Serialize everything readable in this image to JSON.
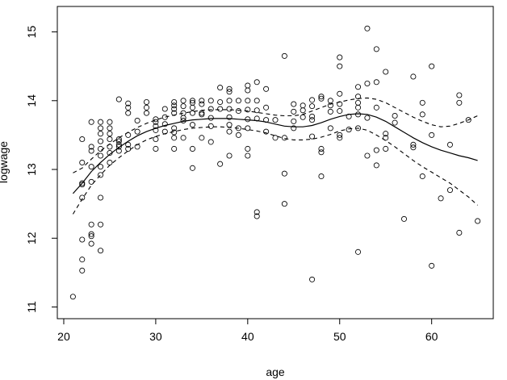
{
  "chart_data": {
    "type": "scatter",
    "xlabel": "age",
    "ylabel": "logwage",
    "xlim": [
      19.3,
      66.7
    ],
    "ylim": [
      10.83,
      15.37
    ],
    "x_ticks": [
      20,
      30,
      40,
      50,
      60
    ],
    "y_ticks": [
      11,
      12,
      13,
      14,
      15
    ],
    "grid": false,
    "points": [
      [
        21,
        11.15
      ],
      [
        22,
        11.53
      ],
      [
        22,
        11.69
      ],
      [
        22,
        11.98
      ],
      [
        22,
        12.59
      ],
      [
        22,
        12.78
      ],
      [
        22,
        12.8
      ],
      [
        22,
        13.1
      ],
      [
        22,
        13.44
      ],
      [
        23,
        11.92
      ],
      [
        23,
        12.03
      ],
      [
        23,
        12.06
      ],
      [
        23,
        12.2
      ],
      [
        23,
        12.82
      ],
      [
        23,
        13.04
      ],
      [
        23,
        13.27
      ],
      [
        23,
        13.33
      ],
      [
        23,
        13.69
      ],
      [
        24,
        11.82
      ],
      [
        24,
        12.2
      ],
      [
        24,
        12.59
      ],
      [
        24,
        12.92
      ],
      [
        24,
        13.04
      ],
      [
        24,
        13.2
      ],
      [
        24,
        13.3
      ],
      [
        24,
        13.41
      ],
      [
        24,
        13.52
      ],
      [
        24,
        13.6
      ],
      [
        24,
        13.69
      ],
      [
        25,
        13.1
      ],
      [
        25,
        13.24
      ],
      [
        25,
        13.33
      ],
      [
        25,
        13.44
      ],
      [
        25,
        13.52
      ],
      [
        25,
        13.6
      ],
      [
        25,
        13.69
      ],
      [
        26,
        13.27
      ],
      [
        26,
        13.33
      ],
      [
        26,
        13.36
      ],
      [
        26,
        13.41
      ],
      [
        26,
        13.44
      ],
      [
        26,
        14.02
      ],
      [
        27,
        13.3
      ],
      [
        27,
        13.36
      ],
      [
        27,
        13.5
      ],
      [
        27,
        13.82
      ],
      [
        27,
        13.9
      ],
      [
        27,
        13.96
      ],
      [
        28,
        13.33
      ],
      [
        28,
        13.55
      ],
      [
        28,
        13.71
      ],
      [
        29,
        13.82
      ],
      [
        29,
        13.9
      ],
      [
        29,
        13.98
      ],
      [
        30,
        13.3
      ],
      [
        30,
        13.44
      ],
      [
        30,
        13.57
      ],
      [
        30,
        13.63
      ],
      [
        30,
        13.69
      ],
      [
        30,
        13.73
      ],
      [
        31,
        13.55
      ],
      [
        31,
        13.66
      ],
      [
        31,
        13.76
      ],
      [
        31,
        13.88
      ],
      [
        32,
        13.3
      ],
      [
        32,
        13.46
      ],
      [
        32,
        13.54
      ],
      [
        32,
        13.6
      ],
      [
        32,
        13.82
      ],
      [
        32,
        13.88
      ],
      [
        32,
        13.93
      ],
      [
        32,
        13.98
      ],
      [
        33,
        13.46
      ],
      [
        33,
        13.71
      ],
      [
        33,
        13.75
      ],
      [
        33,
        13.82
      ],
      [
        33,
        13.92
      ],
      [
        33,
        14.0
      ],
      [
        34,
        13.02
      ],
      [
        34,
        13.3
      ],
      [
        34,
        13.65
      ],
      [
        34,
        13.82
      ],
      [
        34,
        13.9
      ],
      [
        34,
        13.97
      ],
      [
        34,
        14.0
      ],
      [
        35,
        13.46
      ],
      [
        35,
        13.8
      ],
      [
        35,
        13.82
      ],
      [
        35,
        13.95
      ],
      [
        35,
        14.0
      ],
      [
        36,
        13.4
      ],
      [
        36,
        13.63
      ],
      [
        36,
        13.75
      ],
      [
        36,
        13.88
      ],
      [
        36,
        14.0
      ],
      [
        37,
        13.08
      ],
      [
        37,
        13.88
      ],
      [
        37,
        13.98
      ],
      [
        37,
        14.19
      ],
      [
        38,
        13.2
      ],
      [
        38,
        13.55
      ],
      [
        38,
        13.65
      ],
      [
        38,
        13.76
      ],
      [
        38,
        13.88
      ],
      [
        38,
        14.0
      ],
      [
        38,
        14.13
      ],
      [
        38,
        14.17
      ],
      [
        39,
        13.5
      ],
      [
        39,
        13.6
      ],
      [
        39,
        13.85
      ],
      [
        39,
        14.0
      ],
      [
        40,
        13.2
      ],
      [
        40,
        13.3
      ],
      [
        40,
        13.6
      ],
      [
        40,
        13.73
      ],
      [
        40,
        13.87
      ],
      [
        40,
        14.0
      ],
      [
        40,
        14.15
      ],
      [
        40,
        14.22
      ],
      [
        41,
        12.32
      ],
      [
        41,
        12.38
      ],
      [
        41,
        13.74
      ],
      [
        41,
        13.86
      ],
      [
        41,
        14.0
      ],
      [
        41,
        14.27
      ],
      [
        42,
        13.55
      ],
      [
        42,
        13.72
      ],
      [
        42,
        13.9
      ],
      [
        42,
        14.17
      ],
      [
        43,
        13.46
      ],
      [
        43,
        13.72
      ],
      [
        44,
        12.5
      ],
      [
        44,
        12.94
      ],
      [
        44,
        13.46
      ],
      [
        44,
        14.65
      ],
      [
        45,
        13.6
      ],
      [
        45,
        13.7
      ],
      [
        45,
        13.84
      ],
      [
        45,
        13.95
      ],
      [
        46,
        13.76
      ],
      [
        46,
        13.86
      ],
      [
        46,
        13.93
      ],
      [
        47,
        11.4
      ],
      [
        47,
        13.48
      ],
      [
        47,
        13.72
      ],
      [
        47,
        13.77
      ],
      [
        47,
        13.92
      ],
      [
        47,
        14.01
      ],
      [
        48,
        12.9
      ],
      [
        48,
        13.25
      ],
      [
        48,
        13.3
      ],
      [
        48,
        14.03
      ],
      [
        48,
        14.06
      ],
      [
        49,
        13.6
      ],
      [
        49,
        13.84
      ],
      [
        49,
        13.93
      ],
      [
        49,
        14.0
      ],
      [
        50,
        13.46
      ],
      [
        50,
        13.5
      ],
      [
        50,
        13.85
      ],
      [
        50,
        13.95
      ],
      [
        50,
        14.1
      ],
      [
        50,
        14.5
      ],
      [
        50,
        14.63
      ],
      [
        51,
        13.58
      ],
      [
        51,
        13.77
      ],
      [
        52,
        11.8
      ],
      [
        52,
        13.6
      ],
      [
        52,
        13.8
      ],
      [
        52,
        13.9
      ],
      [
        52,
        13.97
      ],
      [
        52,
        14.06
      ],
      [
        52,
        14.2
      ],
      [
        53,
        13.2
      ],
      [
        53,
        13.75
      ],
      [
        53,
        14.25
      ],
      [
        53,
        15.05
      ],
      [
        54,
        13.06
      ],
      [
        54,
        13.28
      ],
      [
        54,
        13.9
      ],
      [
        54,
        14.27
      ],
      [
        54,
        14.75
      ],
      [
        55,
        13.3
      ],
      [
        55,
        13.46
      ],
      [
        55,
        13.52
      ],
      [
        55,
        14.42
      ],
      [
        56,
        13.68
      ],
      [
        56,
        13.78
      ],
      [
        57,
        12.28
      ],
      [
        58,
        13.32
      ],
      [
        58,
        13.36
      ],
      [
        58,
        14.35
      ],
      [
        59,
        12.9
      ],
      [
        59,
        13.8
      ],
      [
        59,
        13.97
      ],
      [
        60,
        11.6
      ],
      [
        60,
        13.5
      ],
      [
        60,
        14.5
      ],
      [
        61,
        12.58
      ],
      [
        62,
        12.7
      ],
      [
        62,
        13.36
      ],
      [
        63,
        12.08
      ],
      [
        63,
        13.97
      ],
      [
        63,
        14.08
      ],
      [
        64,
        13.72
      ],
      [
        65,
        12.25
      ]
    ],
    "fit": {
      "x": [
        21,
        22,
        23,
        24,
        25,
        26,
        27,
        28,
        29,
        30,
        31,
        32,
        33,
        34,
        35,
        36,
        37,
        38,
        39,
        40,
        41,
        42,
        43,
        44,
        45,
        46,
        47,
        48,
        49,
        50,
        51,
        52,
        53,
        54,
        55,
        56,
        57,
        58,
        59,
        60,
        61,
        62,
        63,
        64,
        65
      ],
      "y": [
        12.65,
        12.8,
        12.97,
        13.1,
        13.22,
        13.32,
        13.41,
        13.49,
        13.55,
        13.6,
        13.64,
        13.67,
        13.7,
        13.72,
        13.73,
        13.74,
        13.74,
        13.74,
        13.73,
        13.72,
        13.71,
        13.69,
        13.66,
        13.63,
        13.62,
        13.62,
        13.64,
        13.68,
        13.73,
        13.77,
        13.8,
        13.81,
        13.8,
        13.76,
        13.7,
        13.62,
        13.54,
        13.46,
        13.39,
        13.33,
        13.28,
        13.24,
        13.2,
        13.17,
        13.13
      ],
      "upper": [
        12.95,
        13.02,
        13.15,
        13.27,
        13.37,
        13.46,
        13.54,
        13.61,
        13.67,
        13.72,
        13.76,
        13.79,
        13.82,
        13.84,
        13.86,
        13.87,
        13.87,
        13.87,
        13.86,
        13.85,
        13.83,
        13.81,
        13.79,
        13.78,
        13.78,
        13.8,
        13.85,
        13.9,
        13.95,
        13.98,
        14.01,
        14.03,
        14.04,
        14.02,
        13.97,
        13.9,
        13.83,
        13.76,
        13.7,
        13.65,
        13.62,
        13.63,
        13.67,
        13.72,
        13.78
      ],
      "lower": [
        12.35,
        12.57,
        12.77,
        12.92,
        13.06,
        13.17,
        13.27,
        13.36,
        13.43,
        13.48,
        13.52,
        13.55,
        13.58,
        13.6,
        13.61,
        13.62,
        13.62,
        13.61,
        13.6,
        13.58,
        13.56,
        13.53,
        13.49,
        13.45,
        13.43,
        13.43,
        13.44,
        13.47,
        13.51,
        13.56,
        13.59,
        13.6,
        13.57,
        13.5,
        13.42,
        13.33,
        13.23,
        13.13,
        13.04,
        12.96,
        12.88,
        12.8,
        12.7,
        12.6,
        12.48
      ]
    }
  }
}
